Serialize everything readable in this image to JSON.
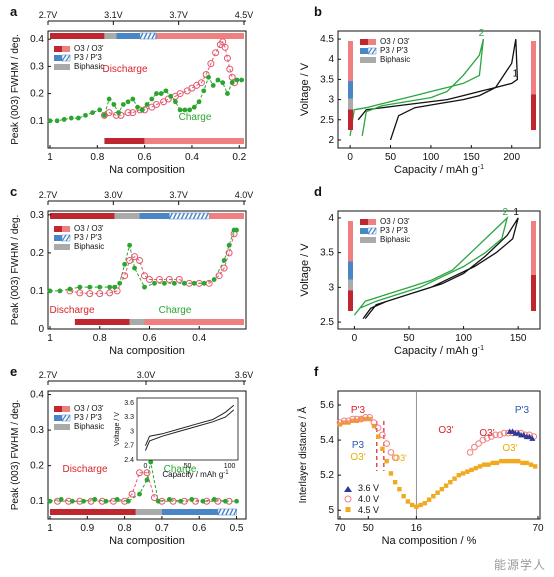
{
  "figure": {
    "watermark": "能源学人",
    "panel_labels": [
      "a",
      "b",
      "c",
      "d",
      "e",
      "f"
    ]
  },
  "colors": {
    "o3": "#c0262f",
    "o3_light": "#f07f7f",
    "p3": "#4a86c6",
    "biphasic": "#aaaaaa",
    "discharge": "#e05a6e",
    "charge": "#2aa52e",
    "black": "#111111",
    "green_curve": "#28a640",
    "v36": "#2a3a9a",
    "v45": "#f1a91e",
    "label_red": "#d8232a",
    "label_blue": "#2b55b8",
    "label_gold": "#e8b000"
  },
  "chart_data": [
    {
      "panel": "a",
      "type": "line",
      "xlabel": "Na composition",
      "ylabel": "Peak (003) FWHM / deg.",
      "xlim": [
        1.0,
        0.18
      ],
      "ylim": [
        0.0,
        0.43
      ],
      "xticks": [
        "1",
        "0.8",
        "0.6",
        "0.4",
        "0.2"
      ],
      "yticks": [
        "0.1",
        "0.2",
        "0.3",
        "0.4"
      ],
      "top_voltages": [
        "2.7V",
        "3.1V",
        "3.7V",
        "4.5V"
      ],
      "legend": [
        "O3 / O3'",
        "P3 / P'3",
        "Biphasic"
      ],
      "annotations": [
        "Discharge",
        "Charge"
      ],
      "series": [
        {
          "name": "Discharge",
          "x": [
            0.77,
            0.75,
            0.72,
            0.7,
            0.67,
            0.65,
            0.62,
            0.6,
            0.57,
            0.55,
            0.52,
            0.5,
            0.47,
            0.45,
            0.42,
            0.4,
            0.38,
            0.36,
            0.34,
            0.32,
            0.3,
            0.28,
            0.27,
            0.26,
            0.25,
            0.24,
            0.23,
            0.22
          ],
          "y": [
            0.12,
            0.13,
            0.12,
            0.12,
            0.13,
            0.13,
            0.14,
            0.14,
            0.15,
            0.16,
            0.17,
            0.18,
            0.19,
            0.2,
            0.21,
            0.22,
            0.23,
            0.24,
            0.27,
            0.31,
            0.35,
            0.38,
            0.39,
            0.37,
            0.33,
            0.29,
            0.26,
            0.24
          ]
        },
        {
          "name": "Charge",
          "x": [
            1.0,
            0.97,
            0.94,
            0.91,
            0.88,
            0.85,
            0.82,
            0.79,
            0.77,
            0.75,
            0.73,
            0.71,
            0.69,
            0.67,
            0.65,
            0.63,
            0.61,
            0.59,
            0.57,
            0.55,
            0.53,
            0.51,
            0.49,
            0.47,
            0.45,
            0.43,
            0.41,
            0.39,
            0.37,
            0.35,
            0.33,
            0.31,
            0.29,
            0.27,
            0.25,
            0.23,
            0.21,
            0.19
          ],
          "y": [
            0.1,
            0.1,
            0.105,
            0.11,
            0.11,
            0.12,
            0.13,
            0.14,
            0.12,
            0.18,
            0.16,
            0.13,
            0.16,
            0.17,
            0.18,
            0.15,
            0.14,
            0.16,
            0.18,
            0.2,
            0.2,
            0.21,
            0.19,
            0.17,
            0.14,
            0.14,
            0.14,
            0.15,
            0.17,
            0.21,
            0.26,
            0.23,
            0.25,
            0.24,
            0.2,
            0.24,
            0.25,
            0.25
          ]
        }
      ],
      "phase_bar_top": [
        [
          "o3",
          1.0,
          0.77
        ],
        [
          "biphasic",
          0.77,
          0.72
        ],
        [
          "p3",
          0.72,
          0.62
        ],
        [
          "p3h",
          0.62,
          0.55
        ],
        [
          "o3l",
          0.55,
          0.18
        ]
      ],
      "phase_bar_bottom": [
        [
          "o3",
          0.77,
          0.6
        ],
        [
          "o3l",
          0.6,
          0.18
        ]
      ]
    },
    {
      "panel": "b",
      "type": "line",
      "xlabel": "Capacity / mAh g",
      "xlabel_sup": "-1",
      "ylabel": "Voltage / V",
      "xlim": [
        -15,
        235
      ],
      "ylim": [
        1.8,
        4.7
      ],
      "xticks": [
        "0",
        "50",
        "100",
        "150",
        "200"
      ],
      "yticks": [
        "2",
        "2.5",
        "3",
        "3.5",
        "4",
        "4.5"
      ],
      "legend": [
        "O3 / O3'",
        "P3 / P'3",
        "Biphasic"
      ],
      "curve_labels": [
        "2",
        "1"
      ],
      "series": [
        {
          "name": "1",
          "x": [
            50,
            60,
            80,
            110,
            140,
            160,
            180,
            200,
            205,
            207,
            200,
            180,
            160,
            140,
            120,
            100,
            80,
            60,
            40,
            20,
            10
          ],
          "y": [
            2.0,
            2.6,
            2.8,
            2.9,
            3.0,
            3.1,
            3.3,
            3.9,
            4.5,
            3.5,
            3.4,
            3.3,
            3.2,
            3.1,
            3.0,
            2.95,
            2.9,
            2.85,
            2.8,
            2.75,
            2.5
          ]
        },
        {
          "name": "2",
          "x": [
            15,
            20,
            40,
            70,
            100,
            120,
            140,
            160,
            165,
            160,
            140,
            120,
            100,
            80,
            60,
            40,
            20,
            5,
            0
          ],
          "y": [
            2.1,
            2.7,
            2.85,
            2.95,
            3.05,
            3.2,
            3.6,
            4.1,
            4.5,
            3.6,
            3.4,
            3.3,
            3.2,
            3.1,
            3.0,
            2.9,
            2.8,
            2.75,
            2.1
          ]
        }
      ]
    },
    {
      "panel": "c",
      "type": "line",
      "xlabel": "Na composition",
      "ylabel": "Peak (003) FWHM / deg.",
      "xlim": [
        1.0,
        0.22
      ],
      "ylim": [
        0.0,
        0.31
      ],
      "xticks": [
        "1",
        "0.8",
        "0.6",
        "0.4"
      ],
      "yticks": [
        "0",
        "0.1",
        "0.2",
        "0.3"
      ],
      "top_voltages": [
        "2.7V",
        "3.0V",
        "3.7V",
        "4.0V"
      ],
      "legend": [
        "O3 / O3'",
        "P3 / P'3",
        "Biphasic"
      ],
      "annotations": [
        "Discharge",
        "Charge"
      ],
      "series": [
        {
          "name": "Discharge",
          "x": [
            0.92,
            0.88,
            0.84,
            0.8,
            0.76,
            0.73,
            0.7,
            0.68,
            0.66,
            0.64,
            0.62,
            0.6,
            0.56,
            0.52,
            0.48,
            0.44,
            0.4,
            0.36,
            0.32,
            0.3,
            0.28,
            0.26
          ],
          "y": [
            0.1,
            0.095,
            0.093,
            0.093,
            0.095,
            0.1,
            0.14,
            0.18,
            0.19,
            0.18,
            0.14,
            0.13,
            0.13,
            0.13,
            0.13,
            0.12,
            0.12,
            0.12,
            0.14,
            0.16,
            0.2,
            0.25
          ]
        },
        {
          "name": "Charge",
          "x": [
            1.0,
            0.96,
            0.92,
            0.88,
            0.84,
            0.8,
            0.76,
            0.74,
            0.72,
            0.7,
            0.68,
            0.66,
            0.62,
            0.58,
            0.54,
            0.5,
            0.46,
            0.42,
            0.38,
            0.34,
            0.3,
            0.28,
            0.26,
            0.25
          ],
          "y": [
            0.1,
            0.1,
            0.105,
            0.11,
            0.11,
            0.11,
            0.11,
            0.11,
            0.12,
            0.17,
            0.22,
            0.16,
            0.11,
            0.12,
            0.12,
            0.12,
            0.12,
            0.12,
            0.12,
            0.13,
            0.18,
            0.22,
            0.26,
            0.26
          ]
        }
      ],
      "phase_bar_top": [
        [
          "o3",
          1.0,
          0.74
        ],
        [
          "biphasic",
          0.74,
          0.64
        ],
        [
          "p3",
          0.64,
          0.52
        ],
        [
          "p3h",
          0.52,
          0.36
        ],
        [
          "o3l",
          0.36,
          0.22
        ]
      ],
      "phase_bar_bottom": [
        [
          "o3",
          0.9,
          0.68
        ],
        [
          "biphasic",
          0.68,
          0.62
        ],
        [
          "o3l",
          0.62,
          0.22
        ]
      ]
    },
    {
      "panel": "d",
      "type": "line",
      "xlabel": "Capacity / mAh g",
      "xlabel_sup": "-1",
      "ylabel": "Voltage / V",
      "xlim": [
        -15,
        170
      ],
      "ylim": [
        2.4,
        4.1
      ],
      "xticks": [
        "0",
        "50",
        "100",
        "150"
      ],
      "yticks": [
        "2.5",
        "3",
        "3.5",
        "4"
      ],
      "legend": [
        "O3 / O3'",
        "P3 / P'3",
        "Biphasic"
      ],
      "curve_labels": [
        "2",
        "1"
      ],
      "series": [
        {
          "name": "1",
          "x": [
            10,
            20,
            40,
            60,
            80,
            100,
            120,
            140,
            150,
            145,
            130,
            110,
            90,
            70,
            50,
            30,
            15,
            8
          ],
          "y": [
            2.55,
            2.75,
            2.85,
            2.95,
            3.05,
            3.2,
            3.45,
            3.75,
            4.0,
            3.7,
            3.5,
            3.3,
            3.15,
            3.0,
            2.9,
            2.8,
            2.7,
            2.55
          ]
        },
        {
          "name": "2",
          "x": [
            0,
            10,
            30,
            50,
            70,
            90,
            110,
            130,
            140,
            135,
            120,
            100,
            80,
            60,
            40,
            20,
            5,
            0
          ],
          "y": [
            2.6,
            2.8,
            2.9,
            3.0,
            3.1,
            3.25,
            3.55,
            3.85,
            4.0,
            3.7,
            3.5,
            3.3,
            3.15,
            3.0,
            2.9,
            2.8,
            2.7,
            2.6
          ]
        }
      ]
    },
    {
      "panel": "e",
      "type": "line",
      "xlabel": "Na composition",
      "ylabel": "Peak (003) FWHM / deg.",
      "xlim": [
        1.0,
        0.48
      ],
      "ylim": [
        0.05,
        0.41
      ],
      "xticks": [
        "1",
        "0.9",
        "0.8",
        "0.7",
        "0.6",
        "0.5"
      ],
      "yticks": [
        "0.1",
        "0.2",
        "0.3",
        "0.4"
      ],
      "top_voltages": [
        "2.7V",
        "3.0V",
        "3.6V"
      ],
      "legend": [
        "O3 / O3'",
        "P3 / P'3",
        "Biphasic"
      ],
      "annotations": [
        "Discharge",
        "Charge"
      ],
      "series": [
        {
          "name": "Discharge",
          "x": [
            0.98,
            0.95,
            0.92,
            0.89,
            0.86,
            0.83,
            0.8,
            0.78,
            0.76,
            0.74,
            0.72,
            0.7,
            0.67,
            0.64,
            0.61,
            0.58,
            0.55,
            0.52
          ],
          "y": [
            0.1,
            0.1,
            0.1,
            0.1,
            0.1,
            0.1,
            0.1,
            0.12,
            0.18,
            0.18,
            0.11,
            0.1,
            0.1,
            0.1,
            0.1,
            0.1,
            0.1,
            0.1
          ]
        },
        {
          "name": "Charge",
          "x": [
            1.0,
            0.97,
            0.94,
            0.91,
            0.88,
            0.85,
            0.82,
            0.79,
            0.76,
            0.74,
            0.73,
            0.71,
            0.68,
            0.65,
            0.62,
            0.59,
            0.56,
            0.53,
            0.5
          ],
          "y": [
            0.1,
            0.105,
            0.1,
            0.1,
            0.105,
            0.1,
            0.105,
            0.1,
            0.12,
            0.16,
            0.21,
            0.1,
            0.105,
            0.1,
            0.105,
            0.1,
            0.105,
            0.1,
            0.1
          ]
        }
      ],
      "phase_bar_bottom": [
        [
          "o3",
          1.0,
          0.77
        ],
        [
          "biphasic",
          0.77,
          0.7
        ],
        [
          "p3",
          0.7,
          0.55
        ],
        [
          "p3h",
          0.55,
          0.5
        ]
      ]
    },
    {
      "panel": "e-inset",
      "type": "line",
      "xlabel": "Capacity / mAh g",
      "xlabel_sup": "-1",
      "ylabel": "Voltage / V",
      "xlim": [
        -10,
        110
      ],
      "ylim": [
        2.4,
        3.7
      ],
      "xticks": [
        "0",
        "50",
        "100"
      ],
      "yticks": [
        "2.4",
        "2.7",
        "3",
        "3.3",
        "3.6"
      ],
      "series": [
        {
          "name": "charge",
          "x": [
            0,
            5,
            20,
            40,
            60,
            80,
            95,
            105
          ],
          "y": [
            2.7,
            2.9,
            2.95,
            3.05,
            3.15,
            3.25,
            3.4,
            3.55
          ]
        },
        {
          "name": "discharge",
          "x": [
            105,
            95,
            80,
            60,
            40,
            20,
            5,
            0
          ],
          "y": [
            3.45,
            3.3,
            3.2,
            3.1,
            3.0,
            2.9,
            2.8,
            2.6
          ]
        }
      ]
    },
    {
      "panel": "f",
      "type": "scatter",
      "xlabel": "Na composition / %",
      "ylabel": "Interlayer distance / Å",
      "xlim": [
        70,
        -70
      ],
      "ylim": [
        4.95,
        5.68
      ],
      "xticks": [
        "70",
        "50",
        "16",
        "70"
      ],
      "yticks": [
        "5",
        "5.2",
        "5.4",
        "5.6"
      ],
      "legend": [
        "3.6 V",
        "4.0 V",
        "4.5 V"
      ],
      "phase_labels": [
        "P'3",
        "O3'",
        "P3",
        "O3'",
        "P'3",
        "O3'",
        "O3'"
      ],
      "series": [
        {
          "name": "3.6 V",
          "x": [
            -50,
            -52,
            -54,
            -56,
            -58,
            -60,
            -62,
            -64,
            -66
          ],
          "y": [
            5.45,
            5.45,
            5.44,
            5.44,
            5.43,
            5.43,
            5.42,
            5.42,
            5.41
          ]
        },
        {
          "name": "4.0 V",
          "x": [
            70,
            67,
            64,
            61,
            58,
            55,
            52,
            49,
            46,
            43,
            40,
            37,
            34,
            31,
            -22,
            -25,
            -28,
            -31,
            -34,
            -37,
            -40,
            -43,
            -46,
            -49,
            -52,
            -55,
            -58,
            -61,
            -64,
            -67
          ],
          "y": [
            5.5,
            5.51,
            5.51,
            5.52,
            5.52,
            5.52,
            5.53,
            5.53,
            5.5,
            5.47,
            5.43,
            5.38,
            5.33,
            5.3,
            5.33,
            5.36,
            5.38,
            5.4,
            5.41,
            5.42,
            5.43,
            5.43,
            5.44,
            5.44,
            5.44,
            5.44,
            5.44,
            5.43,
            5.43,
            5.42
          ]
        },
        {
          "name": "4.5 V",
          "x": [
            70,
            67,
            64,
            61,
            58,
            55,
            52,
            49,
            46,
            43,
            40,
            37,
            34,
            31,
            28,
            25,
            22,
            19,
            16,
            13,
            10,
            7,
            4,
            1,
            -2,
            -5,
            -8,
            -11,
            -14,
            -17,
            -20,
            -23,
            -26,
            -29,
            -32,
            -35,
            -38,
            -41,
            -44,
            -47,
            -50,
            -53,
            -56,
            -59,
            -62,
            -65,
            -68
          ],
          "y": [
            5.49,
            5.5,
            5.5,
            5.51,
            5.51,
            5.52,
            5.52,
            5.52,
            5.48,
            5.42,
            5.35,
            5.28,
            5.21,
            5.16,
            5.12,
            5.08,
            5.05,
            5.03,
            5.02,
            5.03,
            5.04,
            5.06,
            5.08,
            5.1,
            5.12,
            5.14,
            5.16,
            5.18,
            5.2,
            5.21,
            5.22,
            5.23,
            5.24,
            5.25,
            5.26,
            5.26,
            5.27,
            5.27,
            5.28,
            5.28,
            5.28,
            5.28,
            5.28,
            5.27,
            5.27,
            5.26,
            5.25
          ]
        }
      ]
    }
  ]
}
